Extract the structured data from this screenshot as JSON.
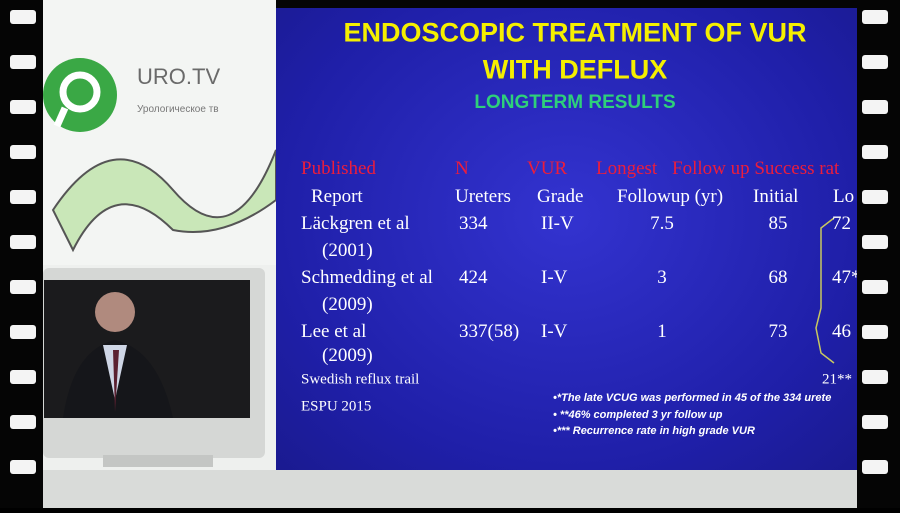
{
  "logo": {
    "name": "URO.TV",
    "tagline": "Урологическое тв"
  },
  "slide": {
    "title": [
      "ENDOSCOPIC TREATMENT OF VUR",
      "WITH DEFLUX"
    ],
    "subtitle": "LONGTERM RESULTS",
    "table": {
      "header": [
        [
          "Published",
          "N",
          "VUR",
          "Longest",
          "Follow up Success rat"
        ],
        [
          "Report",
          "Ureters",
          "Grade",
          "Followup (yr)",
          "Initial",
          "Lo"
        ]
      ],
      "rows": [
        {
          "report": [
            "Läckgren et al",
            "(2001)"
          ],
          "cells": [
            "334",
            "II-V",
            "7.5",
            "85",
            "72"
          ]
        },
        {
          "report": [
            "Schmedding et al",
            "(2009)"
          ],
          "cells": [
            "424",
            "I-V",
            "3",
            "68",
            "47*"
          ]
        },
        {
          "report": [
            "Lee et al",
            "(2009)"
          ],
          "cells": [
            "337(58)",
            "I-V",
            "1",
            "73",
            "46"
          ]
        }
      ]
    },
    "swedish": {
      "label": "Swedish reflux trail",
      "value": "21**"
    },
    "source": "ESPU 2015",
    "footnotes": [
      "•*The late VCUG was performed in 45 of the 334 urete",
      "• **46% completed 3 yr follow up",
      "•*** Recurrence rate in high grade VUR"
    ]
  }
}
